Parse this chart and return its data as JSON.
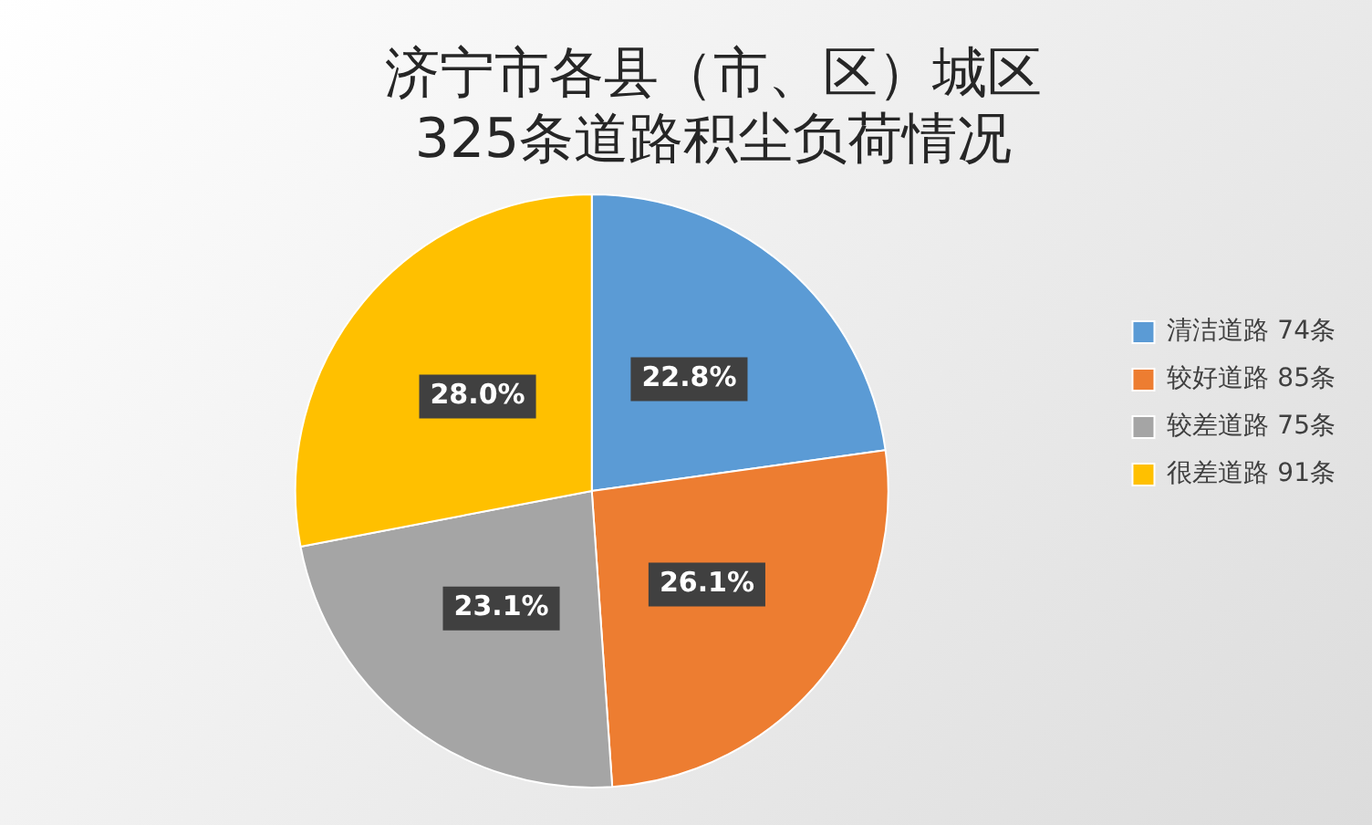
{
  "chart_data": {
    "type": "pie",
    "title": "济宁市各县（市、区）城区\n325条道路积尘负荷情况",
    "categories": [
      "清洁道路 74条",
      "较好道路 85条",
      "较差道路 75条",
      "很差道路 91条"
    ],
    "values": [
      22.8,
      26.1,
      23.1,
      28.0
    ],
    "colors": [
      "#5b9bd5",
      "#ed7d31",
      "#a5a5a5",
      "#ffc000"
    ],
    "value_labels": [
      "22.8%",
      "26.1%",
      "23.1%",
      "28.0%"
    ],
    "legend": "right"
  }
}
